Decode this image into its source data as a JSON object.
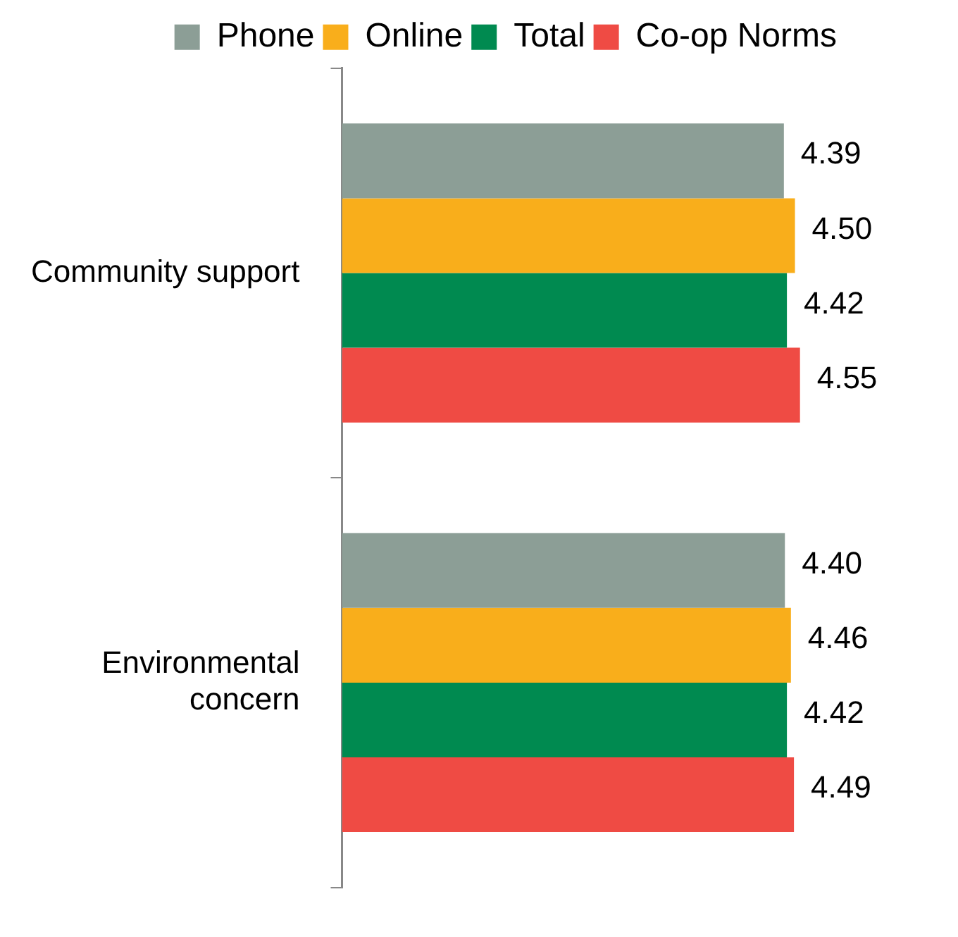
{
  "chart_data": {
    "type": "bar",
    "orientation": "horizontal",
    "categories": [
      "Community support",
      "Environmental concern"
    ],
    "series": [
      {
        "name": "Phone",
        "color": "#8c9e96",
        "values": [
          4.39,
          4.4
        ],
        "value_labels": [
          "4.39",
          "4.40"
        ]
      },
      {
        "name": "Online",
        "color": "#f9ae1b",
        "values": [
          4.5,
          4.46
        ],
        "value_labels": [
          "4.50",
          "4.46"
        ]
      },
      {
        "name": "Total",
        "color": "#008a50",
        "values": [
          4.42,
          4.42
        ],
        "value_labels": [
          "4.42",
          "4.42"
        ]
      },
      {
        "name": "Co-op Norms",
        "color": "#ef4b44",
        "values": [
          4.55,
          4.49
        ],
        "value_labels": [
          "4.55",
          "4.49"
        ]
      }
    ],
    "tick_labels": "y",
    "legend": "top"
  }
}
